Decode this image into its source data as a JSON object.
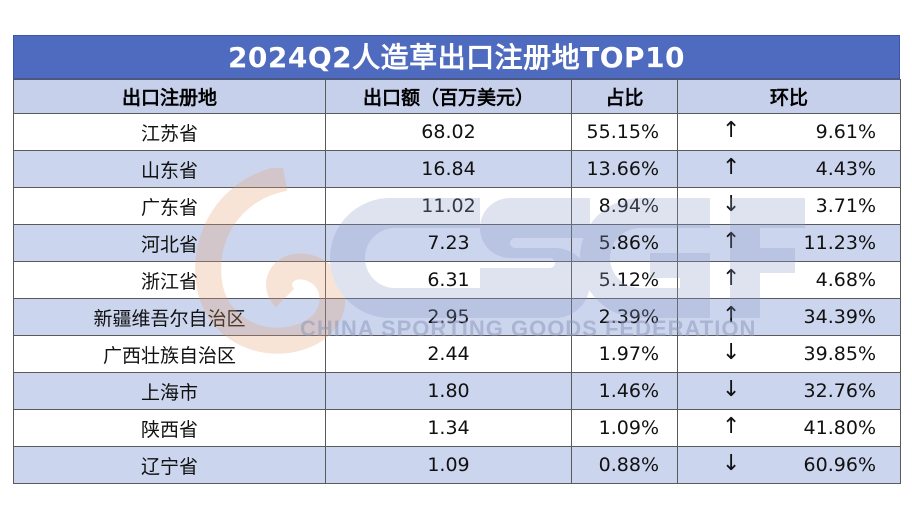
{
  "title": "2024Q2人造草出口注册地TOP10",
  "headers": [
    "出口注册地",
    "出口额（百万美元）",
    "占比",
    "环比"
  ],
  "rows": [
    {
      "region": "江苏省",
      "amount": "68.02",
      "share": "55.15%",
      "dir": "↑",
      "mom": "9.61%"
    },
    {
      "region": "山东省",
      "amount": "16.84",
      "share": "13.66%",
      "dir": "↑",
      "mom": "4.43%"
    },
    {
      "region": "广东省",
      "amount": "11.02",
      "share": "8.94%",
      "dir": "↓",
      "mom": "3.71%"
    },
    {
      "region": "河北省",
      "amount": "7.23",
      "share": "5.86%",
      "dir": "↑",
      "mom": "11.23%"
    },
    {
      "region": "浙江省",
      "amount": "6.31",
      "share": "5.12%",
      "dir": "↑",
      "mom": "4.68%"
    },
    {
      "region": "新疆维吾尔自治区",
      "amount": "2.95",
      "share": "2.39%",
      "dir": "↑",
      "mom": "34.39%"
    },
    {
      "region": "广西壮族自治区",
      "amount": "2.44",
      "share": "1.97%",
      "dir": "↓",
      "mom": "39.85%"
    },
    {
      "region": "上海市",
      "amount": "1.80",
      "share": "1.46%",
      "dir": "↓",
      "mom": "32.76%"
    },
    {
      "region": "陕西省",
      "amount": "1.34",
      "share": "1.09%",
      "dir": "↑",
      "mom": "41.80%"
    },
    {
      "region": "辽宁省",
      "amount": "1.09",
      "share": "0.88%",
      "dir": "↓",
      "mom": "60.96%"
    }
  ],
  "watermark": {
    "logo": "CSGF",
    "text": "CHINA SPORTING GOODS FEDERATION"
  },
  "colors": {
    "title_bg": "#4f6bbf",
    "header_bg": "#c7d0eb",
    "stripe_bg": "#ccd5ee"
  }
}
